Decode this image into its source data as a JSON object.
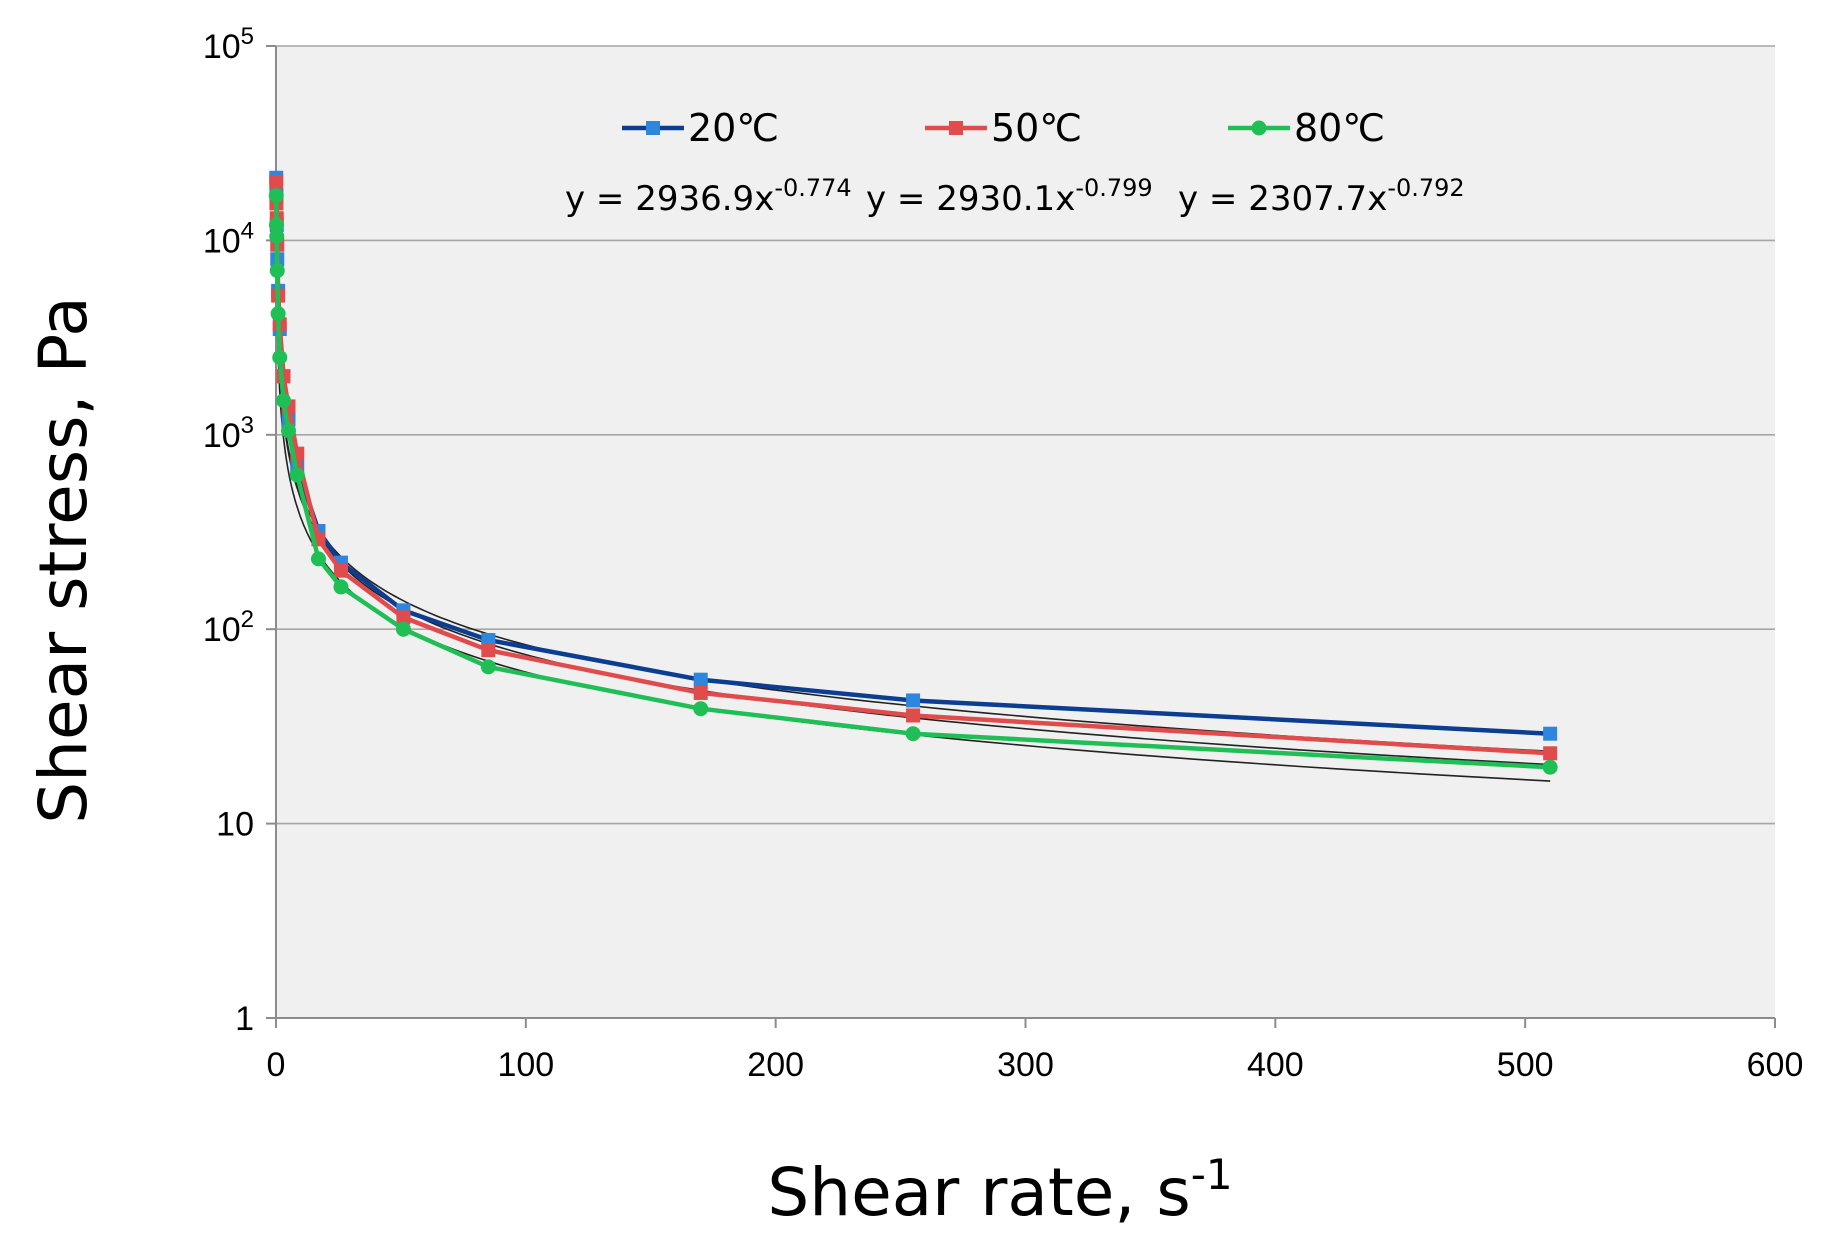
{
  "chart_data": {
    "type": "line",
    "title": "",
    "xlabel": "Shear rate,  s",
    "xlabel_sup": "-1",
    "ylabel": "Shear stress,  Pa",
    "xlim": [
      0,
      600
    ],
    "ylim": [
      1,
      100000
    ],
    "yscale": "log",
    "x_ticks": [
      "0",
      "100",
      "200",
      "300",
      "400",
      "500",
      "600"
    ],
    "x_tick_values": [
      0,
      100,
      200,
      300,
      400,
      500,
      600
    ],
    "y_ticks": [
      {
        "value": 1,
        "base": "1",
        "exp": ""
      },
      {
        "value": 10,
        "base": "10",
        "exp": ""
      },
      {
        "value": 100,
        "base": "10",
        "exp": "2"
      },
      {
        "value": 1000,
        "base": "10",
        "exp": "3"
      },
      {
        "value": 10000,
        "base": "10",
        "exp": "4"
      },
      {
        "value": 100000,
        "base": "10",
        "exp": "5"
      }
    ],
    "grid": "horizontal",
    "legend_position": "top",
    "series": [
      {
        "name": "20℃",
        "color": "#0b3d91",
        "marker_color": "#2e86de",
        "marker": "square",
        "x": [
          0.1,
          0.17,
          0.3,
          0.5,
          0.85,
          1.5,
          3,
          5,
          8.5,
          17,
          26,
          51,
          85,
          170,
          255,
          510
        ],
        "y": [
          21000,
          17000,
          12000,
          8000,
          5500,
          3500,
          2000,
          1200,
          680,
          320,
          220,
          125,
          88,
          55,
          43,
          29
        ],
        "fit": {
          "a": 2936.9,
          "b": -0.774,
          "label": "y = 2936.9x",
          "exp_label": "-0.774"
        }
      },
      {
        "name": "50℃",
        "color": "#e04b4b",
        "marker_color": "#e04b4b",
        "marker": "square",
        "x": [
          0.1,
          0.17,
          0.3,
          0.5,
          0.85,
          1.5,
          3,
          5,
          8.5,
          17,
          26,
          51,
          85,
          170,
          255,
          510
        ],
        "y": [
          20000,
          15500,
          13000,
          9500,
          5200,
          3700,
          2000,
          1400,
          800,
          290,
          200,
          115,
          78,
          47,
          36,
          23
        ],
        "fit": {
          "a": 2930.1,
          "b": -0.799,
          "label": "y = 2930.1x",
          "exp_label": "-0.799"
        }
      },
      {
        "name": "80℃",
        "color": "#1fbf55",
        "marker_color": "#1fbf55",
        "marker": "circle",
        "x": [
          0.1,
          0.17,
          0.3,
          0.5,
          0.85,
          1.5,
          3,
          5,
          8.5,
          17,
          26,
          51,
          85,
          170,
          255,
          510
        ],
        "y": [
          17000,
          12000,
          10500,
          7000,
          4200,
          2500,
          1500,
          1050,
          620,
          230,
          165,
          100,
          64,
          39,
          29,
          19.5
        ],
        "fit": {
          "a": 2307.7,
          "b": -0.792,
          "label": "y = 2307.7x",
          "exp_label": "-0.792"
        }
      }
    ]
  }
}
